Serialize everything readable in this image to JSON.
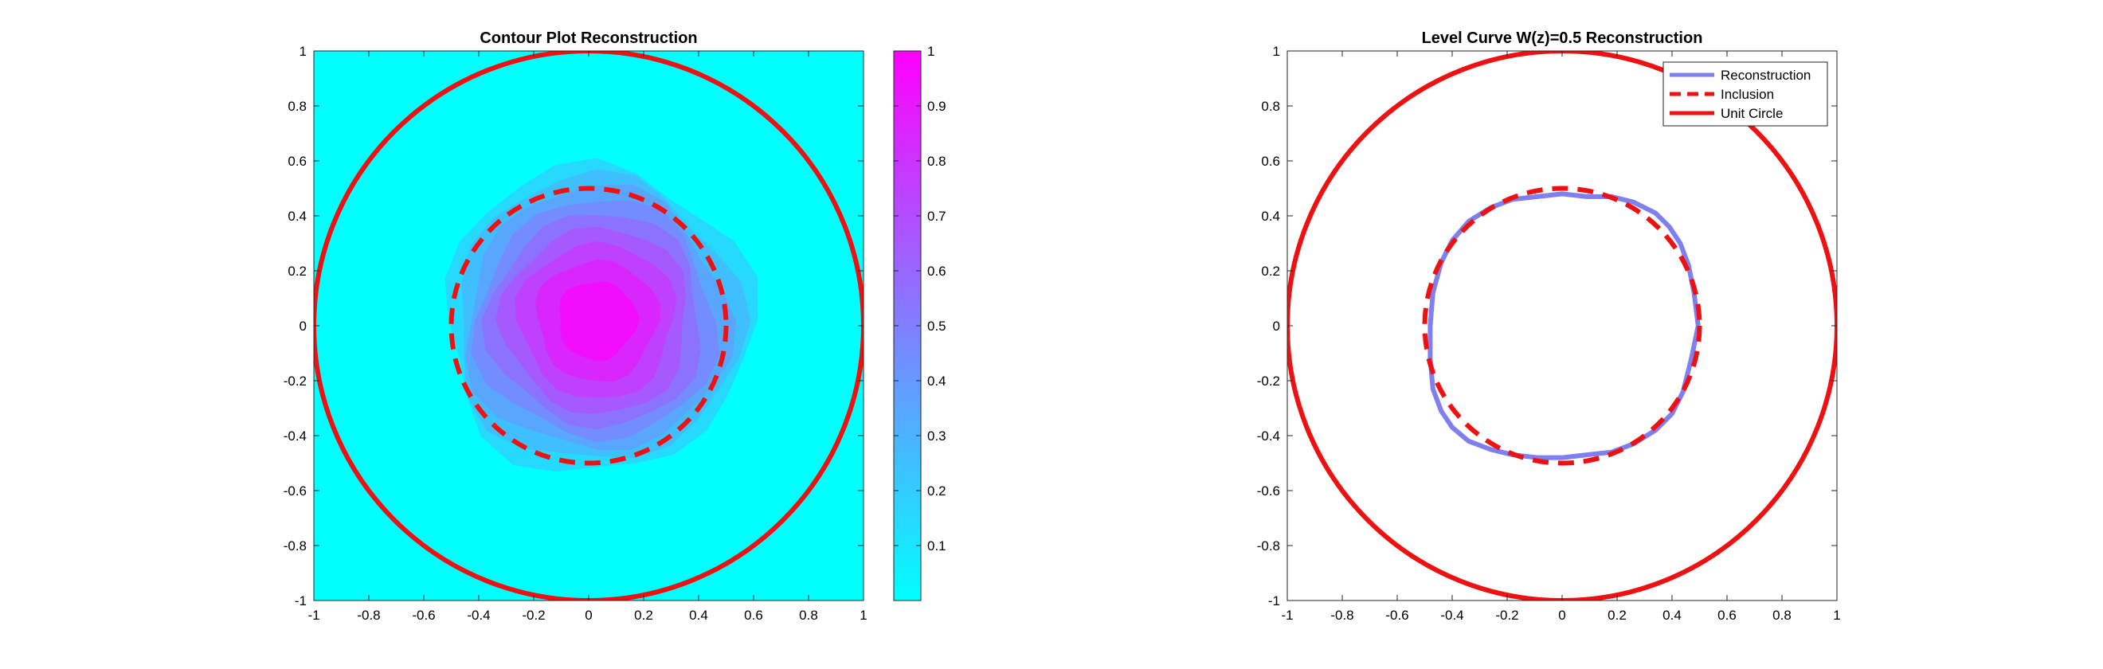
{
  "chart_data": [
    {
      "type": "heatmap",
      "title": "Contour Plot Reconstruction",
      "xlim": [
        -1,
        1
      ],
      "ylim": [
        -1,
        1
      ],
      "xticks": [
        "-1",
        "-0.8",
        "-0.6",
        "-0.4",
        "-0.2",
        "0",
        "0.2",
        "0.4",
        "0.6",
        "0.8",
        "1"
      ],
      "yticks": [
        "1",
        "0.8",
        "0.6",
        "0.4",
        "0.2",
        "0",
        "-0.2",
        "-0.4",
        "-0.6",
        "-0.8",
        "-1"
      ],
      "grid": false,
      "colormap": "cool",
      "colormap_ends": [
        "#00ffff",
        "#ff00ff"
      ],
      "colorbar": {
        "range": [
          0,
          1
        ],
        "ticks": [
          "1",
          "0.9",
          "0.8",
          "0.7",
          "0.6",
          "0.5",
          "0.4",
          "0.3",
          "0.2",
          "0.1"
        ]
      },
      "field": {
        "center": [
          0.03,
          0.02
        ],
        "peak_value": 1.0,
        "half_value_radius": 0.47,
        "support_radius": 0.6
      },
      "series": [
        {
          "type": "circle",
          "center": [
            0,
            0
          ],
          "radius": 0.5,
          "style": "dashed",
          "color": "#ee1111"
        },
        {
          "type": "circle",
          "center": [
            0,
            0
          ],
          "radius": 1.0,
          "style": "solid",
          "color": "#ee1111"
        }
      ]
    },
    {
      "type": "line",
      "title": "Level Curve W(z)=0.5 Reconstruction",
      "xlim": [
        -1,
        1
      ],
      "ylim": [
        -1,
        1
      ],
      "xticks": [
        "-1",
        "-0.8",
        "-0.6",
        "-0.4",
        "-0.2",
        "0",
        "0.2",
        "0.4",
        "0.6",
        "0.8",
        "1"
      ],
      "yticks": [
        "1",
        "0.8",
        "0.6",
        "0.4",
        "0.2",
        "0",
        "-0.2",
        "-0.4",
        "-0.6",
        "-0.8",
        "-1"
      ],
      "grid": false,
      "legend_position": "top-right",
      "series": [
        {
          "name": "Reconstruction",
          "color": "#7f7ff0",
          "style": "solid",
          "x": [
            0.495,
            0.48,
            0.46,
            0.43,
            0.39,
            0.34,
            0.26,
            0.18,
            0.09,
            0.0,
            -0.09,
            -0.18,
            -0.26,
            -0.34,
            -0.4,
            -0.44,
            -0.47,
            -0.48,
            -0.48,
            -0.47,
            -0.44,
            -0.4,
            -0.34,
            -0.26,
            -0.18,
            -0.09,
            0.0,
            0.09,
            0.18,
            0.26,
            0.34,
            0.4,
            0.44,
            0.47,
            0.495
          ],
          "y": [
            0.0,
            0.12,
            0.22,
            0.3,
            0.36,
            0.41,
            0.45,
            0.47,
            0.47,
            0.48,
            0.47,
            0.46,
            0.43,
            0.38,
            0.31,
            0.23,
            0.12,
            0.0,
            -0.12,
            -0.23,
            -0.31,
            -0.37,
            -0.42,
            -0.45,
            -0.47,
            -0.48,
            -0.48,
            -0.47,
            -0.46,
            -0.43,
            -0.38,
            -0.32,
            -0.24,
            -0.12,
            0.0
          ]
        },
        {
          "name": "Inclusion",
          "type": "circle",
          "center": [
            0,
            0
          ],
          "radius": 0.5,
          "style": "dashed",
          "color": "#ee1111"
        },
        {
          "name": "Unit Circle",
          "type": "circle",
          "center": [
            0,
            0
          ],
          "radius": 1.0,
          "style": "solid",
          "color": "#ee1111"
        }
      ]
    }
  ]
}
